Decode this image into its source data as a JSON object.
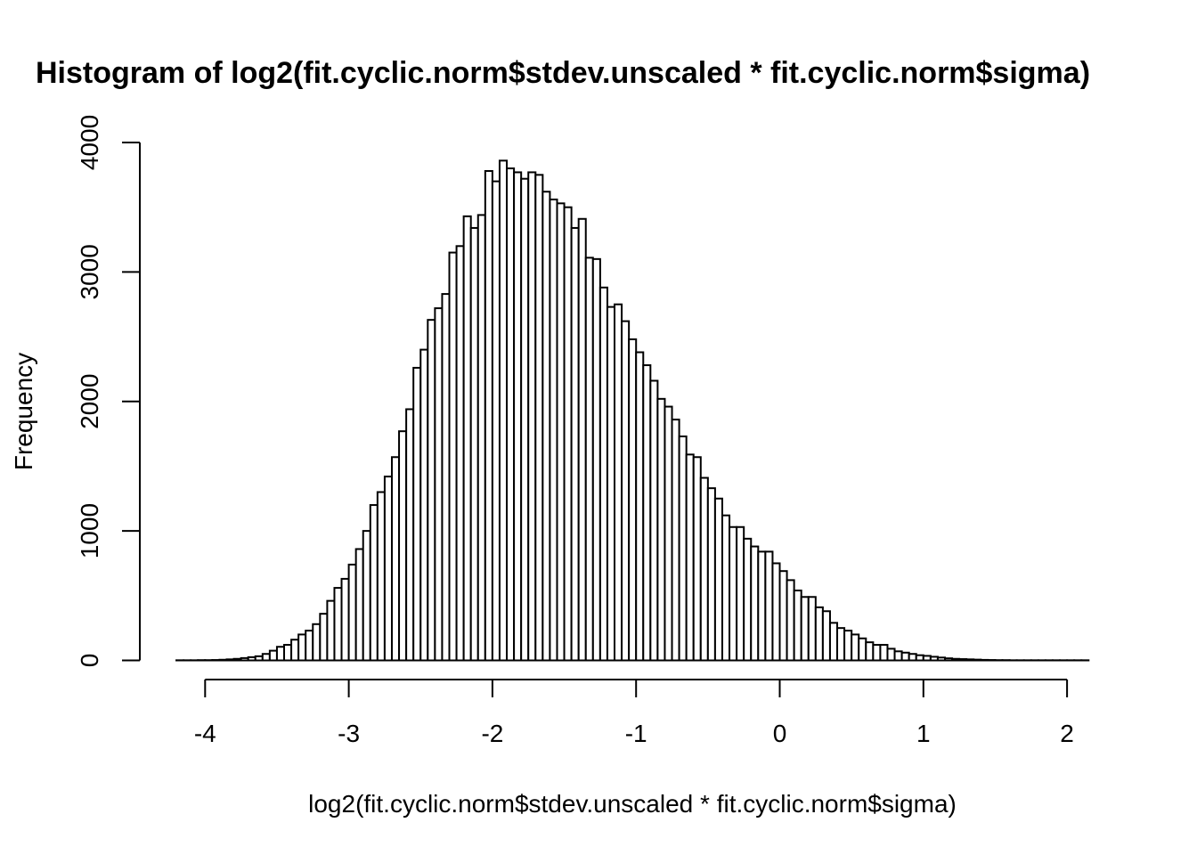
{
  "chart_data": {
    "type": "bar",
    "title": "Histogram of log2(fit.cyclic.norm$stdev.unscaled * fit.cyclic.norm$sigma)",
    "xlabel": "log2(fit.cyclic.norm$stdev.unscaled * fit.cyclic.norm$sigma)",
    "ylabel": "Frequency",
    "xlim": [
      -4.2,
      2.15
    ],
    "ylim": [
      0,
      4000
    ],
    "bin_start": -4.2,
    "bin_width": 0.05,
    "x_ticks": [
      -4,
      -3,
      -2,
      -1,
      0,
      1,
      2
    ],
    "x_tick_labels": [
      "-4",
      "-3",
      "-2",
      "-1",
      "0",
      "1",
      "2"
    ],
    "y_ticks": [
      0,
      1000,
      2000,
      3000,
      4000
    ],
    "y_tick_labels": [
      "0",
      "1000",
      "2000",
      "3000",
      "4000"
    ],
    "grid": false,
    "values": [
      1,
      1,
      1,
      2,
      2,
      3,
      5,
      8,
      12,
      18,
      25,
      32,
      50,
      75,
      105,
      120,
      160,
      200,
      230,
      280,
      360,
      460,
      560,
      630,
      740,
      860,
      1000,
      1200,
      1300,
      1420,
      1570,
      1770,
      1940,
      2260,
      2400,
      2630,
      2720,
      2830,
      3150,
      3200,
      3430,
      3340,
      3440,
      3780,
      3700,
      3860,
      3800,
      3770,
      3720,
      3770,
      3750,
      3620,
      3560,
      3530,
      3500,
      3340,
      3410,
      3110,
      3100,
      2880,
      2730,
      2750,
      2620,
      2480,
      2380,
      2280,
      2160,
      2020,
      1960,
      1860,
      1730,
      1590,
      1570,
      1410,
      1330,
      1250,
      1120,
      1030,
      1030,
      940,
      880,
      840,
      840,
      750,
      690,
      620,
      540,
      490,
      490,
      410,
      380,
      290,
      250,
      230,
      200,
      170,
      140,
      120,
      120,
      90,
      70,
      60,
      50,
      40,
      35,
      28,
      22,
      16,
      12,
      10,
      8,
      6,
      4,
      3,
      2,
      2,
      1,
      1,
      1,
      1,
      1,
      1,
      1,
      1,
      1,
      1,
      1
    ]
  }
}
